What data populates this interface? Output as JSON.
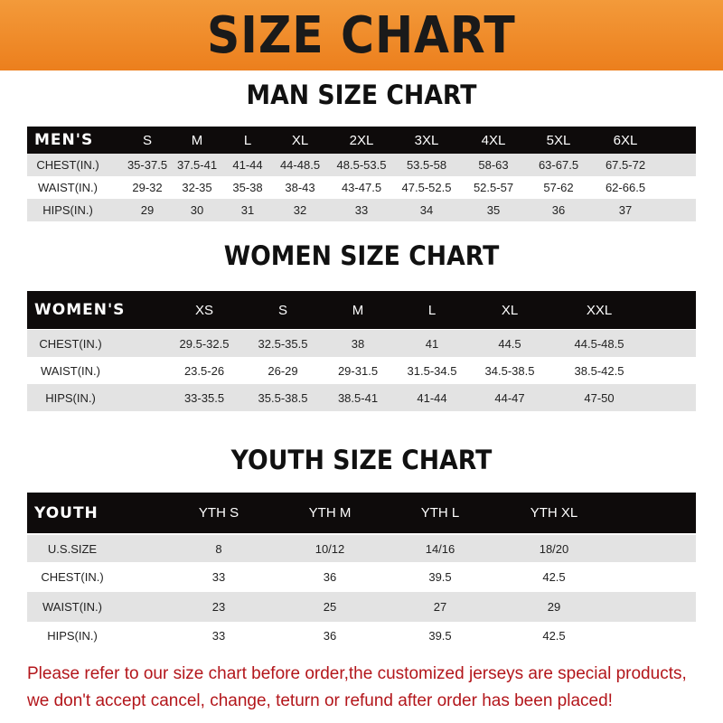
{
  "banner": "SIZE CHART",
  "men": {
    "title": "MAN SIZE CHART",
    "header": "MEN'S",
    "sizes": [
      "S",
      "M",
      "L",
      "XL",
      "2XL",
      "3XL",
      "4XL",
      "5XL",
      "6XL"
    ],
    "rows": [
      {
        "label": "CHEST(IN.)",
        "values": [
          "35-37.5",
          "37.5-41",
          "41-44",
          "44-48.5",
          "48.5-53.5",
          "53.5-58",
          "58-63",
          "63-67.5",
          "67.5-72"
        ]
      },
      {
        "label": "WAIST(IN.)",
        "values": [
          "29-32",
          "32-35",
          "35-38",
          "38-43",
          "43-47.5",
          "47.5-52.5",
          "52.5-57",
          "57-62",
          "62-66.5"
        ]
      },
      {
        "label": "HIPS(IN.)",
        "values": [
          "29",
          "30",
          "31",
          "32",
          "33",
          "34",
          "35",
          "36",
          "37"
        ]
      }
    ]
  },
  "women": {
    "title": "WOMEN SIZE CHART",
    "header": "WOMEN'S",
    "sizes": [
      "XS",
      "S",
      "M",
      "L",
      "XL",
      "XXL"
    ],
    "rows": [
      {
        "label": "CHEST(IN.)",
        "values": [
          "29.5-32.5",
          "32.5-35.5",
          "38",
          "41",
          "44.5",
          "44.5-48.5"
        ]
      },
      {
        "label": "WAIST(IN.)",
        "values": [
          "23.5-26",
          "26-29",
          "29-31.5",
          "31.5-34.5",
          "34.5-38.5",
          "38.5-42.5"
        ]
      },
      {
        "label": "HIPS(IN.)",
        "values": [
          "33-35.5",
          "35.5-38.5",
          "38.5-41",
          "41-44",
          "44-47",
          "47-50"
        ]
      }
    ]
  },
  "youth": {
    "title": "YOUTH SIZE CHART",
    "header": "YOUTH",
    "sizes": [
      "YTH S",
      "YTH M",
      "YTH L",
      "YTH XL"
    ],
    "rows": [
      {
        "label": "U.S.SIZE",
        "values": [
          "8",
          "10/12",
          "14/16",
          "18/20"
        ]
      },
      {
        "label": "CHEST(IN.)",
        "values": [
          "33",
          "36",
          "39.5",
          "42.5"
        ]
      },
      {
        "label": "WAIST(IN.)",
        "values": [
          "23",
          "25",
          "27",
          "29"
        ]
      },
      {
        "label": "HIPS(IN.)",
        "values": [
          "33",
          "36",
          "39.5",
          "42.5"
        ]
      }
    ]
  },
  "notice": [
    "Please refer to our size chart before order,the customized jerseys are special products,",
    "we don't accept cancel, change, teturn or refund after order has been placed!"
  ]
}
